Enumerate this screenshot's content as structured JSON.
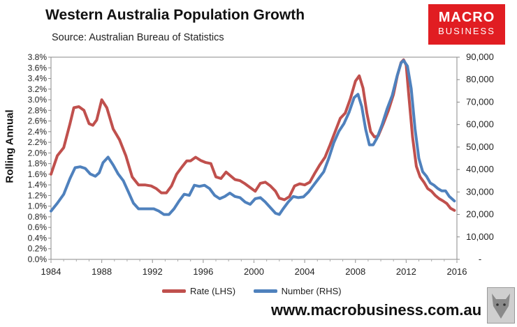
{
  "chart_data": {
    "type": "line",
    "title": "Western Australia Population Growth",
    "subtitle": "Source: Australian Bureau of Statistics",
    "ylabel": "Rolling Annual",
    "xlabel": "",
    "xlim": [
      1984,
      2016
    ],
    "x_ticks": [
      "1984",
      "1988",
      "1992",
      "1996",
      "2000",
      "2004",
      "2008",
      "2012",
      "2016"
    ],
    "ylim_left": [
      0,
      3.8
    ],
    "left_ticks": [
      "0.0%",
      "0.2%",
      "0.4%",
      "0.6%",
      "0.8%",
      "1.0%",
      "1.2%",
      "1.4%",
      "1.6%",
      "1.8%",
      "2.0%",
      "2.2%",
      "2.4%",
      "2.6%",
      "2.8%",
      "3.0%",
      "3.2%",
      "3.4%",
      "3.6%",
      "3.8%"
    ],
    "ylim_right": [
      0,
      90000
    ],
    "right_ticks": [
      "-",
      "10,000",
      "20,000",
      "30,000",
      "40,000",
      "50,000",
      "60,000",
      "70,000",
      "80,000",
      "90,000"
    ],
    "series": [
      {
        "name": "Rate (LHS)",
        "axis": "left",
        "color": "#c0504d",
        "x": [
          1984.0,
          1984.5,
          1985.0,
          1985.5,
          1985.8,
          1986.2,
          1986.6,
          1987.0,
          1987.3,
          1987.6,
          1988.0,
          1988.4,
          1988.9,
          1989.4,
          1989.9,
          1990.4,
          1990.9,
          1991.4,
          1991.9,
          1992.3,
          1992.7,
          1993.1,
          1993.5,
          1993.9,
          1994.3,
          1994.7,
          1995.0,
          1995.4,
          1995.8,
          1996.2,
          1996.6,
          1997.0,
          1997.4,
          1997.8,
          1998.1,
          1998.5,
          1998.9,
          1999.3,
          1999.7,
          2000.1,
          2000.5,
          2000.9,
          2001.3,
          2001.7,
          2002.0,
          2002.4,
          2002.8,
          2003.2,
          2003.6,
          2004.0,
          2004.4,
          2004.8,
          2005.2,
          2005.6,
          2006.0,
          2006.4,
          2006.8,
          2007.2,
          2007.6,
          2008.0,
          2008.3,
          2008.6,
          2008.9,
          2009.2,
          2009.5,
          2009.8,
          2010.2,
          2010.6,
          2011.0,
          2011.3,
          2011.6,
          2011.8,
          2012.0,
          2012.2,
          2012.5,
          2012.8,
          2013.1,
          2013.4,
          2013.7,
          2014.0,
          2014.3,
          2014.6,
          2014.9,
          2015.2,
          2015.5,
          2015.8
        ],
        "values": [
          1.6,
          1.95,
          2.1,
          2.55,
          2.85,
          2.87,
          2.8,
          2.55,
          2.52,
          2.62,
          3.0,
          2.85,
          2.45,
          2.25,
          1.95,
          1.55,
          1.4,
          1.4,
          1.38,
          1.33,
          1.25,
          1.25,
          1.38,
          1.6,
          1.73,
          1.85,
          1.85,
          1.92,
          1.86,
          1.82,
          1.8,
          1.55,
          1.52,
          1.64,
          1.58,
          1.5,
          1.48,
          1.42,
          1.35,
          1.28,
          1.43,
          1.45,
          1.38,
          1.28,
          1.15,
          1.12,
          1.18,
          1.38,
          1.42,
          1.4,
          1.45,
          1.62,
          1.78,
          1.92,
          2.15,
          2.4,
          2.65,
          2.75,
          3.02,
          3.35,
          3.45,
          3.22,
          2.75,
          2.4,
          2.3,
          2.32,
          2.55,
          2.8,
          3.1,
          3.45,
          3.7,
          3.75,
          3.65,
          3.1,
          2.3,
          1.75,
          1.55,
          1.45,
          1.33,
          1.28,
          1.2,
          1.14,
          1.1,
          1.05,
          0.96,
          0.92
        ]
      },
      {
        "name": "Number (RHS)",
        "axis": "right",
        "color": "#4f81bd",
        "x": [
          1984.0,
          1984.5,
          1985.0,
          1985.5,
          1985.9,
          1986.3,
          1986.7,
          1987.1,
          1987.5,
          1987.8,
          1988.1,
          1988.5,
          1988.9,
          1989.3,
          1989.7,
          1990.1,
          1990.5,
          1990.9,
          1991.3,
          1991.7,
          1992.1,
          1992.5,
          1992.9,
          1993.3,
          1993.7,
          1994.1,
          1994.5,
          1994.9,
          1995.3,
          1995.7,
          1996.1,
          1996.5,
          1996.9,
          1997.3,
          1997.7,
          1998.1,
          1998.5,
          1998.9,
          1999.3,
          1999.7,
          2000.1,
          2000.5,
          2000.9,
          2001.3,
          2001.7,
          2002.0,
          2002.3,
          2002.7,
          2003.1,
          2003.5,
          2003.9,
          2004.3,
          2004.7,
          2005.1,
          2005.5,
          2005.9,
          2006.3,
          2006.7,
          2007.1,
          2007.5,
          2007.9,
          2008.2,
          2008.5,
          2008.8,
          2009.1,
          2009.4,
          2009.7,
          2010.1,
          2010.5,
          2010.9,
          2011.3,
          2011.6,
          2011.8,
          2012.1,
          2012.4,
          2012.7,
          2013.0,
          2013.3,
          2013.6,
          2013.9,
          2014.2,
          2014.5,
          2014.8,
          2015.1,
          2015.4,
          2015.8
        ],
        "values": [
          21500,
          25000,
          29000,
          36000,
          40800,
          41200,
          40500,
          38000,
          37000,
          38500,
          43000,
          45500,
          42000,
          38000,
          35000,
          30000,
          25000,
          22500,
          22500,
          22500,
          22500,
          21500,
          20000,
          20000,
          22500,
          26000,
          29000,
          28500,
          33000,
          32500,
          33000,
          31500,
          28500,
          27000,
          28000,
          29500,
          28000,
          27500,
          25500,
          24500,
          27000,
          27500,
          25500,
          23000,
          20500,
          20000,
          22500,
          25500,
          28000,
          27500,
          27800,
          30000,
          33000,
          36000,
          39000,
          45000,
          52000,
          57000,
          60500,
          65500,
          72000,
          73500,
          68000,
          58000,
          51000,
          51000,
          54000,
          60000,
          67000,
          73000,
          82000,
          87500,
          88500,
          86000,
          76000,
          58000,
          45000,
          39000,
          37000,
          34000,
          33000,
          31500,
          30500,
          30500,
          28000,
          26000
        ]
      }
    ],
    "legend_position": "bottom"
  },
  "branding": {
    "logo_line1": "MACRO",
    "logo_line2": "BUSINESS",
    "website": "www.macrobusiness.com.au"
  }
}
